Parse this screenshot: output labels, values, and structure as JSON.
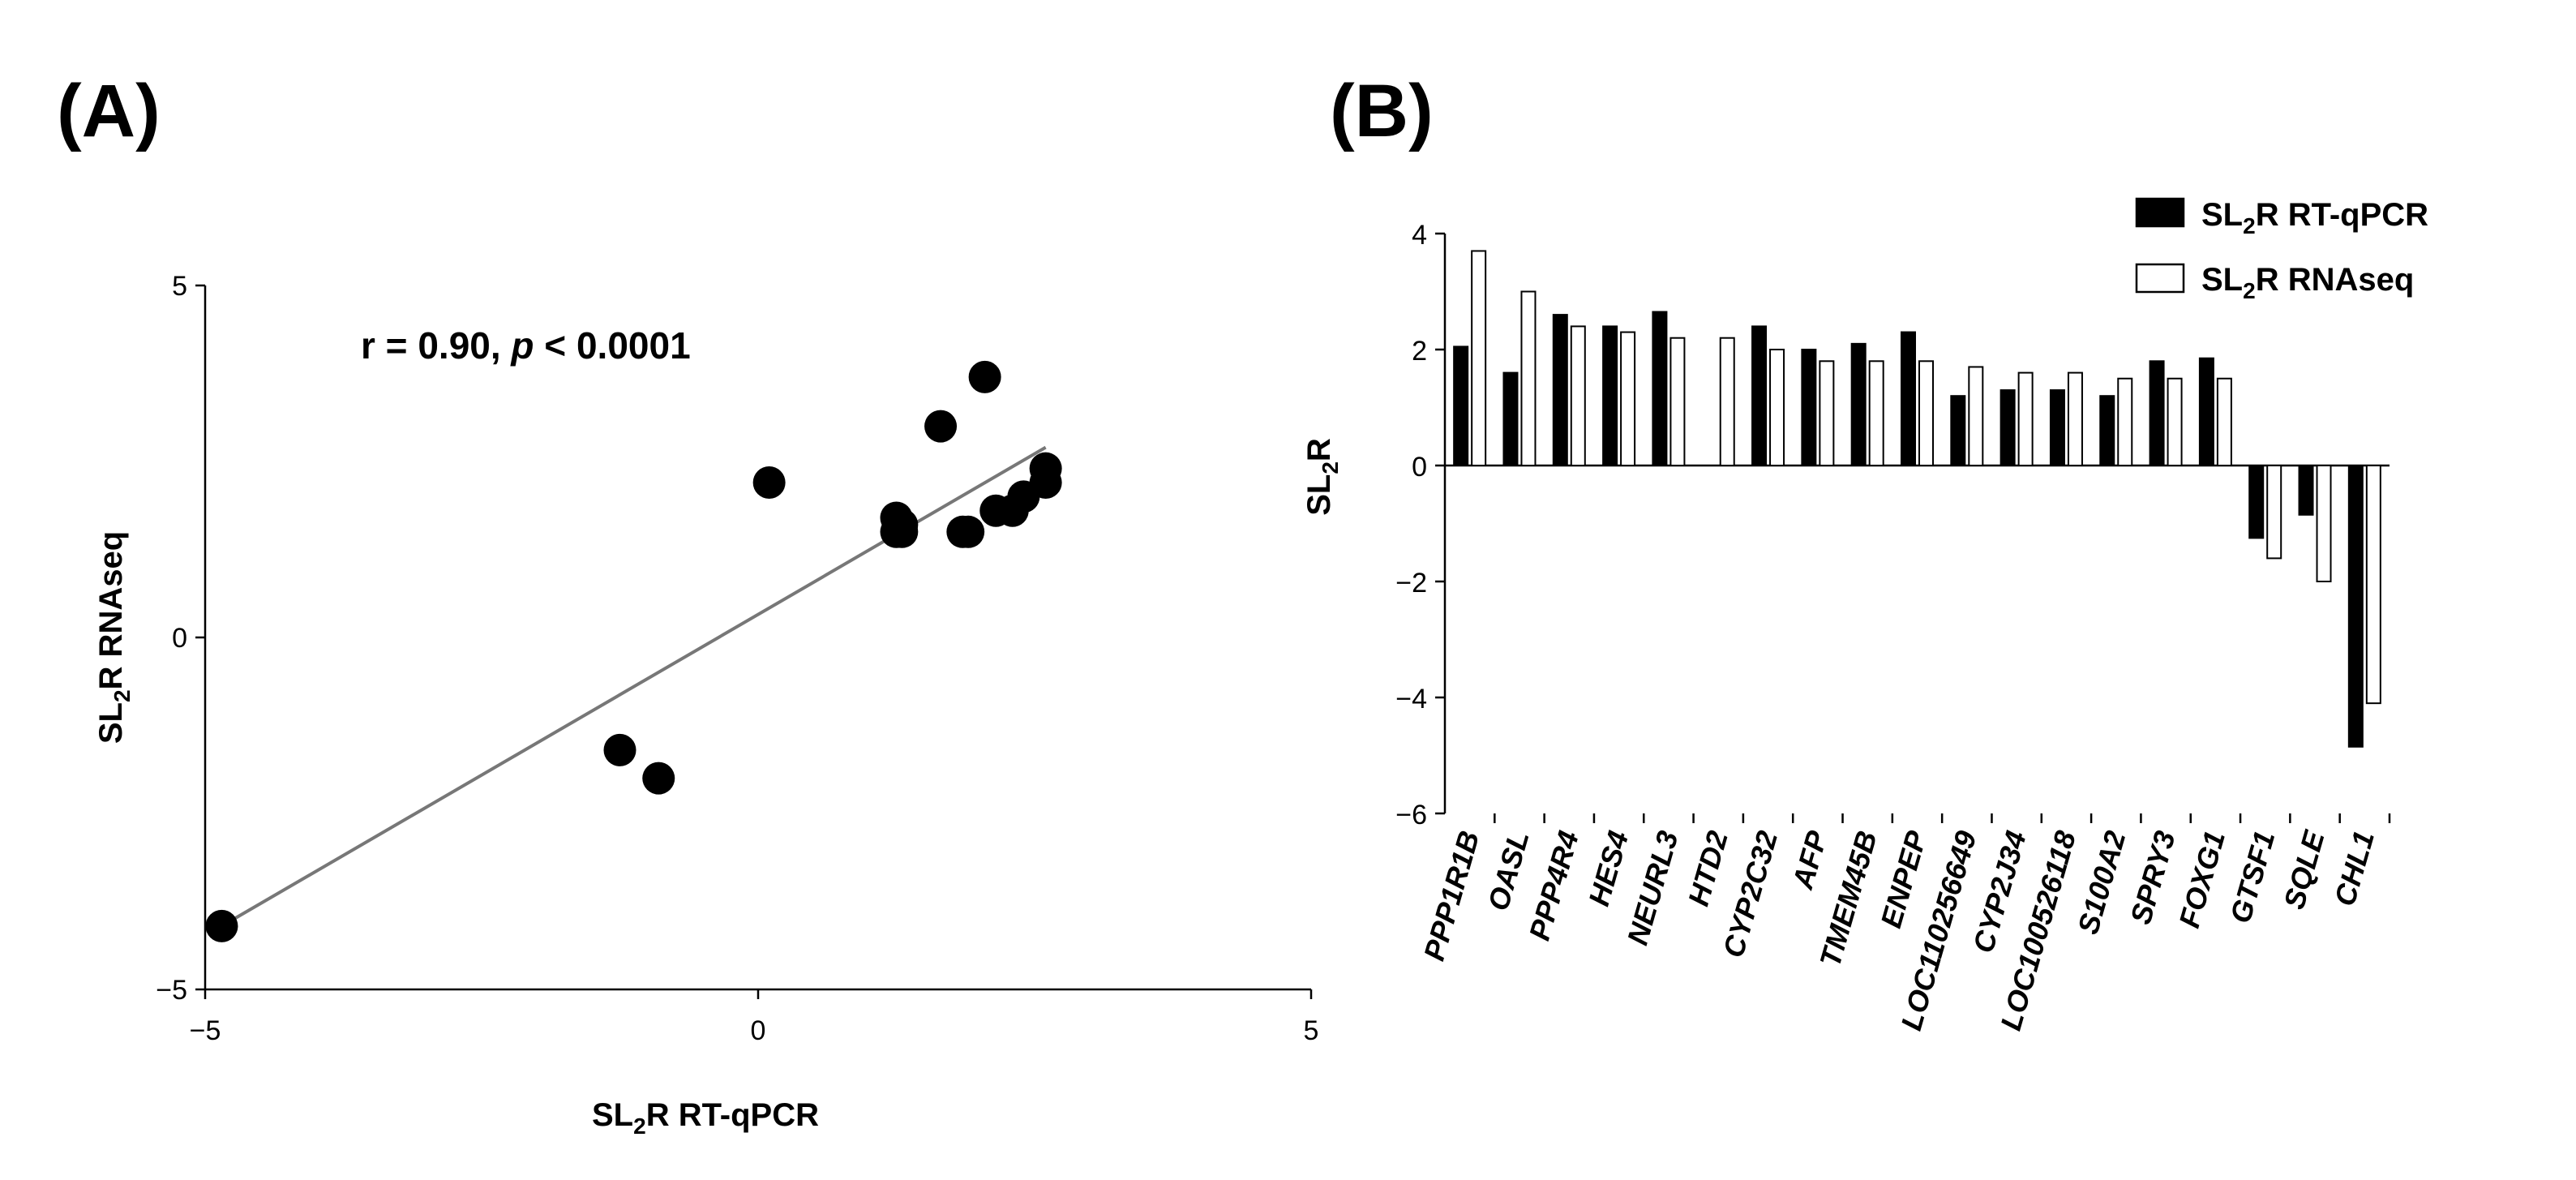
{
  "chart_data": [
    {
      "panel_label": "(A)",
      "type": "scatter",
      "xlabel": "SL2R RT-qPCR",
      "xlabel_parts": {
        "pre": "SL",
        "sub": "2",
        "post": "R RT-qPCR"
      },
      "ylabel": "SL2R  RNAseq",
      "ylabel_parts": {
        "pre": "SL",
        "sub": "2",
        "post": "R  RNAseq"
      },
      "xlim": [
        -5,
        5
      ],
      "ylim": [
        -5,
        5
      ],
      "xticks": [
        -5,
        0,
        5
      ],
      "yticks": [
        -5,
        0,
        5
      ],
      "annotation": {
        "prefix": "r = 0.90, ",
        "p_symbol": "p",
        "suffix": " < 0.0001"
      },
      "points": [
        {
          "x": 2.05,
          "y": 3.7
        },
        {
          "x": 1.65,
          "y": 3.0
        },
        {
          "x": 0.1,
          "y": 2.2
        },
        {
          "x": 2.6,
          "y": 2.4
        },
        {
          "x": 2.6,
          "y": 2.2
        },
        {
          "x": 2.4,
          "y": 2.0
        },
        {
          "x": 2.15,
          "y": 1.8
        },
        {
          "x": 2.3,
          "y": 1.8
        },
        {
          "x": 1.25,
          "y": 1.7
        },
        {
          "x": 1.3,
          "y": 1.6
        },
        {
          "x": 1.25,
          "y": 1.5
        },
        {
          "x": 1.3,
          "y": 1.5
        },
        {
          "x": 1.85,
          "y": 1.5
        },
        {
          "x": 1.9,
          "y": 1.5
        },
        {
          "x": -1.25,
          "y": -1.6
        },
        {
          "x": -0.9,
          "y": -2.0
        },
        {
          "x": -4.85,
          "y": -4.1
        }
      ],
      "trendline": {
        "x": [
          -4.85,
          2.6
        ],
        "y": [
          -4.1,
          2.7
        ],
        "color": "#777777"
      }
    },
    {
      "panel_label": "(B)",
      "type": "bar",
      "ylabel": "SL2R",
      "ylabel_parts": {
        "pre": "SL",
        "sub": "2",
        "post": "R"
      },
      "ylim": [
        -6,
        4
      ],
      "yticks": [
        4,
        2,
        0,
        -2,
        -4,
        -6
      ],
      "categories": [
        "PPP1R1B",
        "OASL",
        "PPP4R4",
        "HES4",
        "NEURL3",
        "HTD2",
        "CYP2C32",
        "AFP",
        "TMEM45B",
        "ENPEP",
        "LOC110256649",
        "CYP2J34",
        "LOC100526118",
        "S100A2",
        "SPRY3",
        "FOXG1",
        "GTSF1",
        "SQLE",
        "CHL1"
      ],
      "series": [
        {
          "name": "SL2R RT-qPCR",
          "name_parts": {
            "pre": "SL",
            "sub": "2",
            "post": "R RT-qPCR"
          },
          "fill": "#000000",
          "values": [
            2.05,
            1.6,
            2.6,
            2.4,
            2.65,
            0,
            2.4,
            2.0,
            2.1,
            2.3,
            1.2,
            1.3,
            1.3,
            1.2,
            1.8,
            1.85,
            -1.25,
            -0.85,
            -4.85
          ]
        },
        {
          "name": "SL2R  RNAseq",
          "name_parts": {
            "pre": "SL",
            "sub": "2",
            "post": "R  RNAseq"
          },
          "fill": "#ffffff",
          "values": [
            3.7,
            3.0,
            2.4,
            2.3,
            2.2,
            2.2,
            2.0,
            1.8,
            1.8,
            1.8,
            1.7,
            1.6,
            1.6,
            1.5,
            1.5,
            1.5,
            -1.6,
            -2.0,
            -4.1
          ]
        }
      ],
      "legend_position": "top-right"
    }
  ]
}
